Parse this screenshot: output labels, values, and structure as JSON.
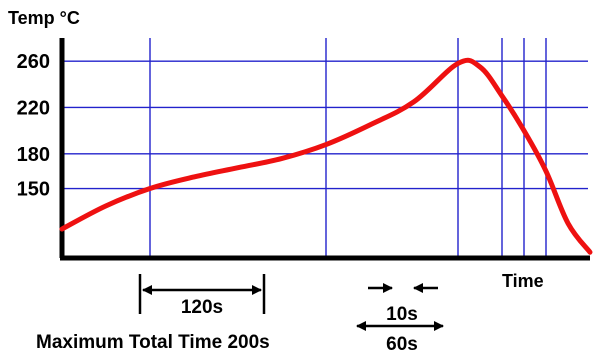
{
  "chart_data": {
    "type": "line",
    "ylabel": "Temp °C",
    "xlabel": "Time",
    "y_ticks": [
      "260",
      "220",
      "180",
      "150"
    ],
    "y_tick_values": [
      260,
      220,
      180,
      150
    ],
    "ylim": [
      90,
      280
    ],
    "xlim": [
      0,
      240
    ],
    "grid": true,
    "series": [
      {
        "color": "#ee1111",
        "x": [
          0,
          20,
          40,
          60,
          80,
          100,
          120,
          140,
          160,
          180,
          190,
          200,
          210,
          220,
          230,
          240
        ],
        "y": [
          115,
          135,
          150,
          160,
          168,
          176,
          188,
          205,
          225,
          258,
          255,
          230,
          200,
          165,
          120,
          95
        ]
      }
    ],
    "vertical_markers": [
      40,
      120,
      180,
      200,
      210,
      220
    ],
    "annotations": {
      "preheat_span": "120s",
      "peak_span": "10s",
      "liquidus_span": "60s",
      "max_total": "Maximum Total Time 200s"
    }
  },
  "colors": {
    "grid": "#2222cc",
    "curve": "#ee1111",
    "axis": "#000000"
  }
}
